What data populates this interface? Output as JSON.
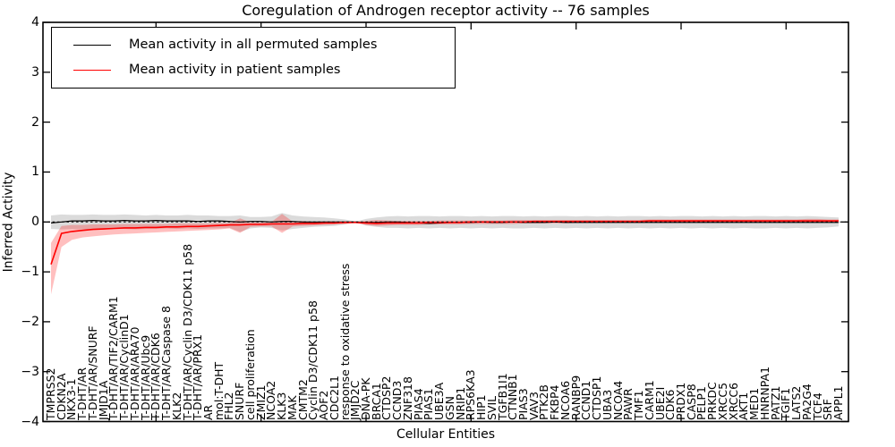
{
  "title": "Coregulation of Androgen receptor activity -- 76 samples",
  "legend": {
    "items": [
      {
        "label": "Mean activity in all permuted samples",
        "color": "#000000"
      },
      {
        "label": "Mean activity in patient samples",
        "color": "#ff0000"
      }
    ]
  },
  "chart_data": {
    "type": "line",
    "title": "Coregulation of Androgen receptor activity -- 76 samples",
    "xlabel": "Cellular Entities",
    "ylabel": "Inferred Activity",
    "ylim": [
      -4,
      4
    ],
    "grid": false,
    "legend_position": "upper left",
    "y_ticks": [
      4,
      3,
      2,
      1,
      0,
      -1,
      -2,
      -3,
      -4
    ],
    "y_tick_labels": [
      "4",
      "3",
      "2",
      "1",
      "0",
      "−1",
      "−2",
      "−3",
      "−4"
    ],
    "zero_line": 0,
    "colors": {
      "permuted_line": "#000000",
      "patient_line": "#ff0000",
      "permuted_band": "rgba(0,0,0,0.14)",
      "patient_band": "rgba(255,0,0,0.25)"
    },
    "categories": [
      "TMPRSS2",
      "CDKN2A",
      "NKX3-1",
      "T-DHT/AR",
      "T-DHT/AR/SNURF",
      "JMJD1A",
      "T-DHT/AR/TIF2/CARM1",
      "T-DHT/AR/CyclinD1",
      "T-DHT/AR/ARA70",
      "T-DHT/AR/Ubc9",
      "T-DHT/AR/CDK6",
      "T-DHT/AR/Caspase 8",
      "KLK2",
      "T-DHT/AR/Cyclin D3/CDK11 p58",
      "T-DHT/AR/PRX1",
      "AR",
      "mol:T-DHT",
      "FHL2",
      "SNURF",
      "cell proliferation",
      "ZMIZ1",
      "NCOA2",
      "KLK3",
      "MAK",
      "CMTM2",
      "Cyclin D3/CDK11 p58",
      "AOF2",
      "CDC2L1",
      "response to oxidative stress",
      "JMJD2C",
      "DNA-PK",
      "BRCA1",
      "CTDSP2",
      "CCND3",
      "ZNF318",
      "PIAS4",
      "PIAS1",
      "UBE3A",
      "GSN",
      "NRIP1",
      "RPS6KA3",
      "HIP1",
      "SVIL",
      "TGFB1I1",
      "CTNNB1",
      "PIAS3",
      "VAV3",
      "PTK2B",
      "FKBP4",
      "NCOA6",
      "RANBP9",
      "CCND1",
      "CTDSP1",
      "UBA3",
      "NCOA4",
      "PAWR",
      "TMF1",
      "CARM1",
      "UBE2I",
      "CDK6",
      "PRDX1",
      "CASP8",
      "PELP1",
      "PRKDC",
      "XRCC5",
      "XRCC6",
      "AKT1",
      "MED1",
      "HNRNPA1",
      "PATZ1",
      "TGIF1",
      "LATS2",
      "PA2G4",
      "TCF4",
      "SRF",
      "APPL1"
    ],
    "series": [
      {
        "name": "Mean activity in all permuted samples",
        "color": "#000000",
        "values": [
          -0.02,
          0.0,
          0.02,
          0.02,
          0.03,
          0.02,
          0.02,
          0.03,
          0.02,
          0.02,
          0.03,
          0.02,
          0.02,
          0.02,
          0.01,
          0.02,
          0.02,
          0.01,
          0.0,
          0.01,
          0.01,
          0.0,
          0.01,
          0.01,
          0.0,
          0.0,
          0.0,
          0.0,
          0.0,
          0.0,
          -0.01,
          -0.01,
          0.0,
          0.0,
          -0.01,
          -0.02,
          -0.03,
          -0.02,
          -0.01,
          -0.01,
          -0.01,
          0.0,
          -0.01,
          -0.01,
          0.0,
          -0.01,
          -0.01,
          -0.01,
          0.0,
          -0.01,
          -0.01,
          -0.01,
          -0.01,
          -0.01,
          -0.01,
          -0.01,
          -0.01,
          -0.01,
          -0.01,
          -0.01,
          -0.01,
          -0.01,
          -0.01,
          -0.01,
          -0.01,
          -0.01,
          -0.01,
          -0.01,
          -0.01,
          -0.01,
          -0.01,
          -0.01,
          -0.01,
          -0.01,
          -0.01,
          -0.01
        ]
      },
      {
        "name": "Mean activity in patient samples",
        "color": "#ff0000",
        "values": [
          -0.85,
          -0.23,
          -0.19,
          -0.17,
          -0.15,
          -0.14,
          -0.13,
          -0.12,
          -0.12,
          -0.11,
          -0.11,
          -0.1,
          -0.1,
          -0.09,
          -0.09,
          -0.08,
          -0.07,
          -0.06,
          -0.06,
          -0.05,
          -0.05,
          -0.04,
          -0.04,
          -0.04,
          -0.03,
          -0.03,
          -0.02,
          -0.02,
          -0.01,
          -0.01,
          -0.02,
          -0.03,
          -0.02,
          -0.02,
          -0.02,
          -0.02,
          -0.01,
          -0.01,
          -0.01,
          -0.01,
          0.0,
          0.0,
          0.0,
          0.0,
          0.0,
          0.0,
          0.01,
          0.01,
          0.01,
          0.01,
          0.01,
          0.01,
          0.01,
          0.01,
          0.01,
          0.01,
          0.01,
          0.02,
          0.02,
          0.02,
          0.02,
          0.02,
          0.02,
          0.02,
          0.02,
          0.02,
          0.02,
          0.02,
          0.02,
          0.02,
          0.02,
          0.02,
          0.02,
          0.02,
          0.02,
          0.02
        ]
      }
    ],
    "bands": [
      {
        "name": "permuted-range",
        "upper": [
          0.13,
          0.15,
          0.14,
          0.14,
          0.15,
          0.14,
          0.14,
          0.15,
          0.14,
          0.13,
          0.14,
          0.13,
          0.13,
          0.14,
          0.13,
          0.13,
          0.12,
          0.12,
          0.13,
          0.1,
          0.1,
          0.11,
          0.18,
          0.13,
          0.11,
          0.1,
          0.09,
          0.07,
          0.05,
          0.01,
          0.06,
          0.09,
          0.11,
          0.12,
          0.11,
          0.12,
          0.12,
          0.11,
          0.12,
          0.12,
          0.11,
          0.12,
          0.11,
          0.12,
          0.12,
          0.11,
          0.12,
          0.11,
          0.12,
          0.12,
          0.11,
          0.12,
          0.11,
          0.12,
          0.11,
          0.12,
          0.12,
          0.11,
          0.12,
          0.11,
          0.12,
          0.12,
          0.11,
          0.12,
          0.11,
          0.12,
          0.11,
          0.12,
          0.12,
          0.11,
          0.12,
          0.11,
          0.12,
          0.11,
          0.1,
          0.09
        ],
        "lower": [
          -0.14,
          -0.15,
          -0.14,
          -0.15,
          -0.14,
          -0.15,
          -0.14,
          -0.14,
          -0.15,
          -0.14,
          -0.14,
          -0.13,
          -0.14,
          -0.13,
          -0.14,
          -0.13,
          -0.13,
          -0.12,
          -0.2,
          -0.13,
          -0.11,
          -0.12,
          -0.17,
          -0.14,
          -0.12,
          -0.1,
          -0.09,
          -0.08,
          -0.05,
          -0.01,
          -0.07,
          -0.1,
          -0.12,
          -0.12,
          -0.13,
          -0.12,
          -0.13,
          -0.12,
          -0.13,
          -0.12,
          -0.13,
          -0.12,
          -0.13,
          -0.12,
          -0.13,
          -0.13,
          -0.12,
          -0.13,
          -0.12,
          -0.13,
          -0.12,
          -0.13,
          -0.12,
          -0.13,
          -0.12,
          -0.13,
          -0.12,
          -0.13,
          -0.12,
          -0.13,
          -0.12,
          -0.13,
          -0.12,
          -0.13,
          -0.12,
          -0.13,
          -0.12,
          -0.13,
          -0.13,
          -0.12,
          -0.13,
          -0.12,
          -0.13,
          -0.12,
          -0.11,
          -0.09
        ]
      },
      {
        "name": "patient-range",
        "upper": [
          -0.42,
          -0.08,
          -0.06,
          -0.06,
          -0.05,
          -0.05,
          -0.05,
          -0.04,
          -0.04,
          -0.04,
          -0.04,
          -0.04,
          -0.03,
          -0.03,
          -0.03,
          -0.03,
          -0.02,
          -0.02,
          0.07,
          -0.01,
          -0.01,
          0.0,
          0.16,
          0.01,
          0.02,
          0.0,
          0.01,
          0.01,
          0.01,
          0.0,
          0.02,
          0.04,
          0.03,
          0.02,
          0.02,
          0.02,
          0.02,
          0.03,
          0.03,
          0.03,
          0.03,
          0.03,
          0.03,
          0.03,
          0.04,
          0.04,
          0.04,
          0.04,
          0.04,
          0.04,
          0.04,
          0.04,
          0.04,
          0.04,
          0.04,
          0.04,
          0.04,
          0.05,
          0.05,
          0.05,
          0.05,
          0.05,
          0.05,
          0.05,
          0.05,
          0.05,
          0.05,
          0.05,
          0.05,
          0.05,
          0.05,
          0.05,
          0.06,
          0.06,
          0.05,
          0.05
        ],
        "lower": [
          -1.45,
          -0.5,
          -0.36,
          -0.31,
          -0.29,
          -0.27,
          -0.25,
          -0.24,
          -0.23,
          -0.22,
          -0.21,
          -0.2,
          -0.19,
          -0.18,
          -0.17,
          -0.16,
          -0.15,
          -0.13,
          -0.22,
          -0.1,
          -0.09,
          -0.09,
          -0.22,
          -0.09,
          -0.08,
          -0.07,
          -0.06,
          -0.05,
          -0.04,
          -0.02,
          -0.06,
          -0.08,
          -0.07,
          -0.06,
          -0.06,
          -0.06,
          -0.05,
          -0.05,
          -0.05,
          -0.05,
          -0.04,
          -0.04,
          -0.04,
          -0.04,
          -0.04,
          -0.03,
          -0.03,
          -0.03,
          -0.03,
          -0.03,
          -0.02,
          -0.02,
          -0.02,
          -0.02,
          -0.02,
          -0.02,
          -0.02,
          -0.02,
          -0.02,
          -0.02,
          -0.02,
          -0.02,
          -0.02,
          -0.01,
          -0.01,
          -0.01,
          -0.01,
          -0.01,
          -0.01,
          -0.01,
          -0.01,
          -0.01,
          -0.01,
          -0.01,
          -0.01,
          -0.02
        ]
      }
    ]
  }
}
